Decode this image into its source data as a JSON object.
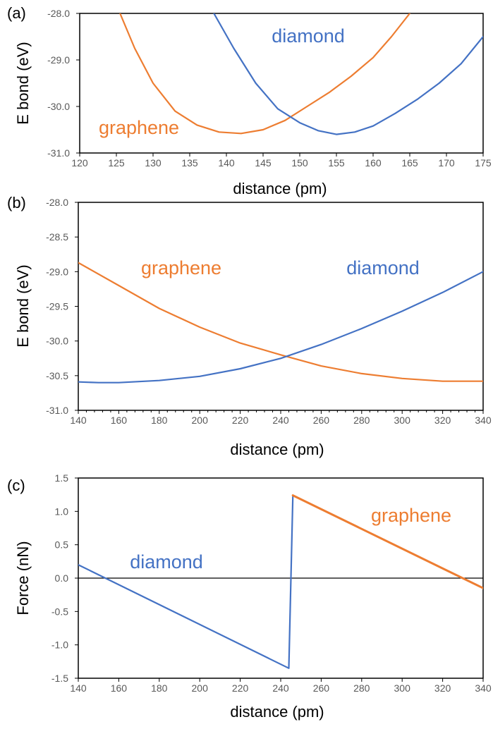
{
  "chart_data": [
    {
      "panel_label": "(a)",
      "type": "line",
      "xlabel": "distance (pm)",
      "ylabel": "E bond (eV)",
      "xlim": [
        120,
        175
      ],
      "ylim": [
        -31.0,
        -28.0
      ],
      "xticks": [
        "120",
        "125",
        "130",
        "135",
        "140",
        "145",
        "150",
        "155",
        "160",
        "165",
        "170",
        "175"
      ],
      "yticks": [
        "-28.0",
        "-29.0",
        "-30.0",
        "-31.0"
      ],
      "zero_line": false,
      "series": [
        {
          "name": "graphene",
          "color": "#ed7d31",
          "points": [
            [
              125.5,
              -28.0
            ],
            [
              127.5,
              -28.75
            ],
            [
              130,
              -29.5
            ],
            [
              133,
              -30.1
            ],
            [
              136,
              -30.4
            ],
            [
              139,
              -30.55
            ],
            [
              142,
              -30.58
            ],
            [
              145,
              -30.5
            ],
            [
              148,
              -30.3
            ],
            [
              151,
              -30.0
            ],
            [
              154,
              -29.7
            ],
            [
              157,
              -29.35
            ],
            [
              160,
              -28.95
            ],
            [
              162.5,
              -28.5
            ],
            [
              165,
              -28.0
            ]
          ]
        },
        {
          "name": "diamond",
          "color": "#4472c4",
          "points": [
            [
              138.3,
              -28.0
            ],
            [
              141,
              -28.75
            ],
            [
              144,
              -29.5
            ],
            [
              147,
              -30.05
            ],
            [
              150,
              -30.35
            ],
            [
              152.5,
              -30.52
            ],
            [
              155,
              -30.6
            ],
            [
              157.5,
              -30.55
            ],
            [
              160,
              -30.42
            ],
            [
              163,
              -30.15
            ],
            [
              166,
              -29.85
            ],
            [
              169,
              -29.5
            ],
            [
              172,
              -29.08
            ],
            [
              175,
              -28.5
            ]
          ]
        }
      ]
    },
    {
      "panel_label": "(b)",
      "type": "line",
      "xlabel": "distance (pm)",
      "ylabel": "E bond (eV)",
      "xlim": [
        140,
        340
      ],
      "ylim": [
        -31.0,
        -28.0
      ],
      "xticks": [
        "140",
        "160",
        "180",
        "200",
        "220",
        "240",
        "260",
        "280",
        "300",
        "320",
        "340"
      ],
      "yticks": [
        "-28.0",
        "-28.5",
        "-29.0",
        "-29.5",
        "-30.0",
        "-30.5",
        "-31.0"
      ],
      "zero_line": false,
      "series": [
        {
          "name": "graphene",
          "color": "#ed7d31",
          "points": [
            [
              140,
              -28.87
            ],
            [
              160,
              -29.2
            ],
            [
              180,
              -29.53
            ],
            [
              200,
              -29.8
            ],
            [
              220,
              -30.03
            ],
            [
              240,
              -30.2
            ],
            [
              260,
              -30.36
            ],
            [
              280,
              -30.47
            ],
            [
              300,
              -30.54
            ],
            [
              320,
              -30.58
            ],
            [
              340,
              -30.58
            ]
          ]
        },
        {
          "name": "diamond",
          "color": "#4472c4",
          "points": [
            [
              140,
              -30.59
            ],
            [
              150,
              -30.6
            ],
            [
              160,
              -30.6
            ],
            [
              180,
              -30.57
            ],
            [
              200,
              -30.51
            ],
            [
              220,
              -30.4
            ],
            [
              240,
              -30.25
            ],
            [
              260,
              -30.05
            ],
            [
              280,
              -29.82
            ],
            [
              300,
              -29.57
            ],
            [
              320,
              -29.3
            ],
            [
              340,
              -29.0
            ]
          ]
        }
      ]
    },
    {
      "panel_label": "(c)",
      "type": "line",
      "xlabel": "distance (pm)",
      "ylabel": "Force (nN)",
      "xlim": [
        140,
        340
      ],
      "ylim": [
        -1.5,
        1.5
      ],
      "xticks": [
        "140",
        "160",
        "180",
        "200",
        "220",
        "240",
        "260",
        "280",
        "300",
        "320",
        "340"
      ],
      "yticks": [
        "1.5",
        "1.0",
        "0.5",
        "0.0",
        "-0.5",
        "-1.0",
        "-1.5"
      ],
      "zero_line": true,
      "series": [
        {
          "name": "diamond",
          "color": "#4472c4",
          "points": [
            [
              140,
              0.2
            ],
            [
              244,
              -1.35
            ],
            [
              246,
              1.22
            ]
          ]
        },
        {
          "name": "graphene",
          "color": "#ed7d31",
          "points": [
            [
              246,
              1.24
            ],
            [
              340,
              -0.15
            ]
          ]
        }
      ]
    }
  ]
}
